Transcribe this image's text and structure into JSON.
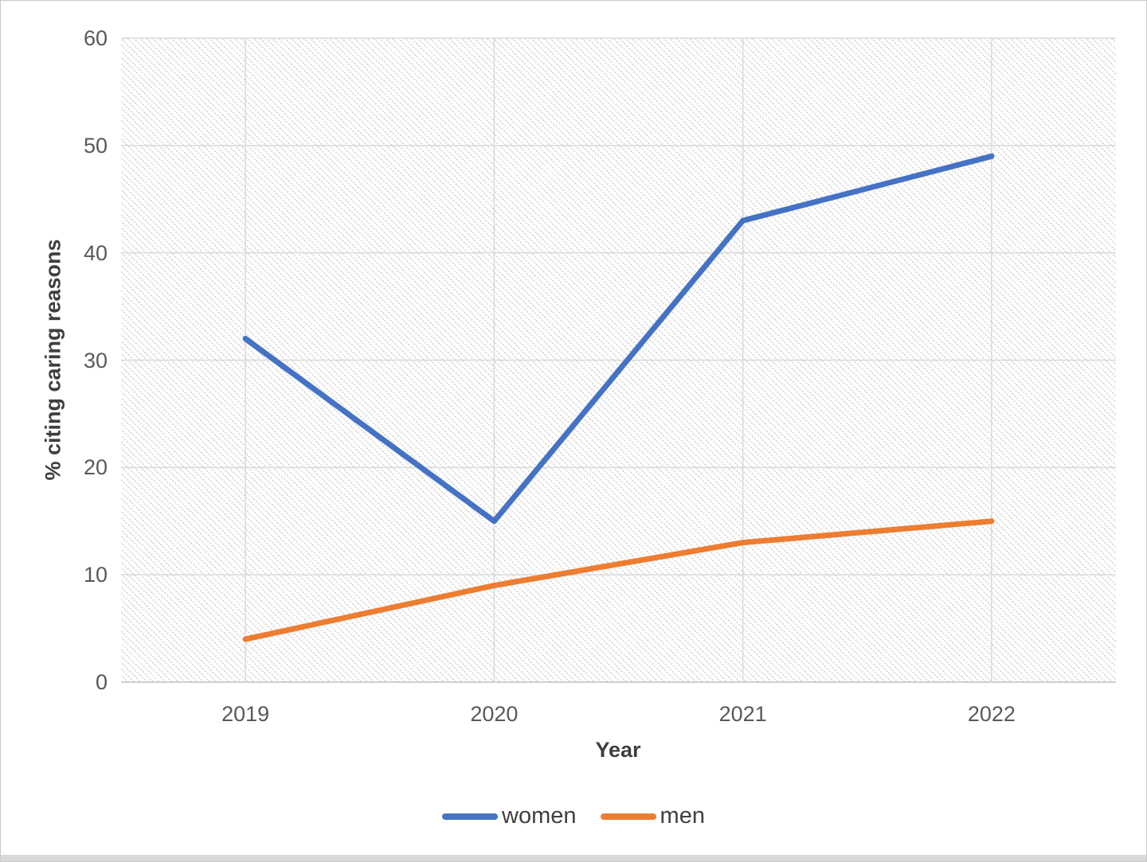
{
  "chart_data": {
    "type": "line",
    "title": "",
    "categories": [
      "2019",
      "2020",
      "2021",
      "2022"
    ],
    "series": [
      {
        "name": "women",
        "color": "#4472C4",
        "values": [
          32,
          15,
          43,
          49
        ]
      },
      {
        "name": "men",
        "color": "#ED7D31",
        "values": [
          4,
          9,
          13,
          15
        ]
      }
    ],
    "xlabel": "Year",
    "ylabel": "% citing caring reasons",
    "ylim": [
      0,
      60
    ],
    "yticks": [
      0,
      10,
      20,
      30,
      40,
      50,
      60
    ],
    "grid": {
      "horizontal": true,
      "vertical": true,
      "color": "#d9d9d9"
    },
    "axis_line_color": "#bfbfbf",
    "tick_label_color": "#595959",
    "axis_title_color": "#3f3f3f",
    "line_width": 7,
    "plot_background": "white with light gray dotted diagonal hatch",
    "legend_position": "bottom-center"
  },
  "legend": {
    "items": [
      {
        "label": "women",
        "color": "#4472C4"
      },
      {
        "label": "men",
        "color": "#ED7D31"
      }
    ]
  }
}
